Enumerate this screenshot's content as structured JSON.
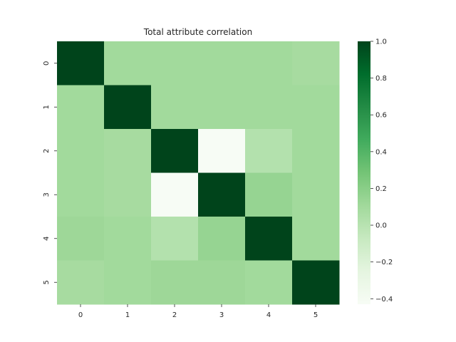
{
  "chart_data": {
    "type": "heatmap",
    "title": "Total attribute correlation",
    "xlabel": "",
    "ylabel": "",
    "x_categories": [
      "0",
      "1",
      "2",
      "3",
      "4",
      "5"
    ],
    "y_categories": [
      "0",
      "1",
      "2",
      "3",
      "4",
      "5"
    ],
    "matrix": [
      [
        1.0,
        0.1,
        0.1,
        0.1,
        0.1,
        0.08
      ],
      [
        0.1,
        1.0,
        0.1,
        0.1,
        0.1,
        0.1
      ],
      [
        0.1,
        0.08,
        1.0,
        -0.43,
        0.02,
        0.1
      ],
      [
        0.1,
        0.08,
        -0.43,
        1.0,
        0.15,
        0.1
      ],
      [
        0.12,
        0.1,
        0.02,
        0.15,
        1.0,
        0.1
      ],
      [
        0.08,
        0.1,
        0.12,
        0.12,
        0.1,
        1.0
      ]
    ],
    "colormap": "Greens",
    "color_range": [
      -0.43,
      1.0
    ],
    "colorbar_ticks": [
      1.0,
      0.8,
      0.6,
      0.4,
      0.2,
      0.0,
      -0.2,
      -0.4
    ],
    "colorbar_tick_labels": [
      "1.0",
      "0.8",
      "0.6",
      "0.4",
      "0.2",
      "0.0",
      "−0.2",
      "−0.4"
    ],
    "grid": false,
    "legend": "colorbar-right"
  }
}
